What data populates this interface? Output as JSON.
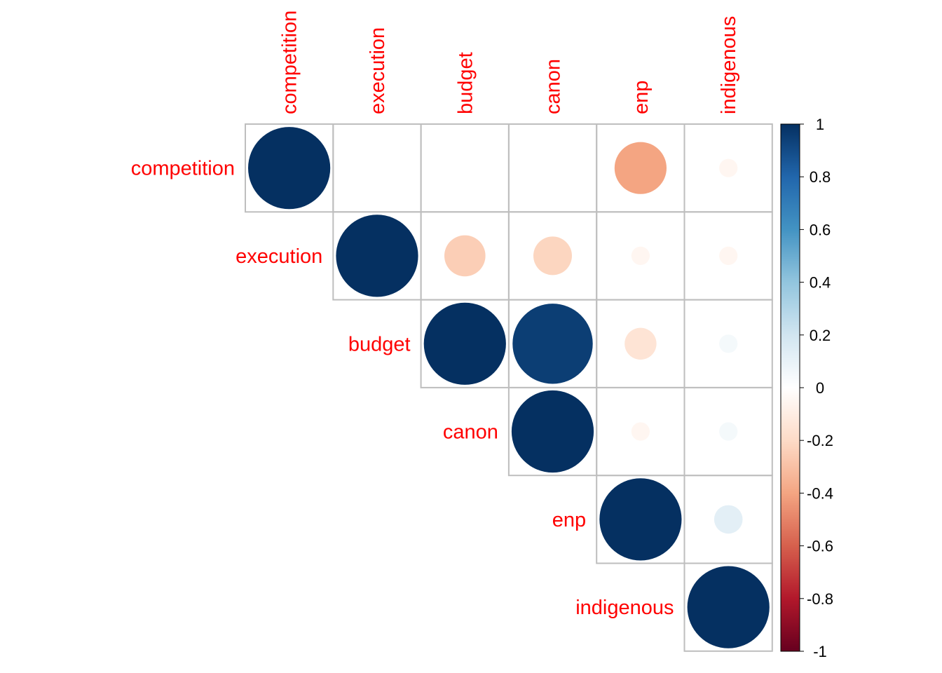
{
  "chart_data": {
    "type": "heatmap",
    "method": "circle",
    "layout": "upper-triangle",
    "variables": [
      "competition",
      "execution",
      "budget",
      "canon",
      "enp",
      "indigenous"
    ],
    "correlations": [
      [
        1.0,
        0.0,
        0.0,
        0.0,
        -0.4,
        -0.05
      ],
      [
        0.0,
        1.0,
        -0.25,
        -0.22,
        -0.05,
        -0.05
      ],
      [
        0.0,
        -0.25,
        1.0,
        0.95,
        -0.15,
        0.05
      ],
      [
        0.0,
        -0.22,
        0.95,
        1.0,
        -0.05,
        0.05
      ],
      [
        -0.4,
        -0.05,
        -0.15,
        -0.05,
        1.0,
        0.12
      ],
      [
        -0.05,
        -0.05,
        0.05,
        0.05,
        0.12,
        1.0
      ]
    ],
    "color_scale": {
      "range": [
        -1,
        1
      ],
      "ticks": [
        "1",
        "0.8",
        "0.6",
        "0.4",
        "0.2",
        "0",
        "-0.2",
        "-0.4",
        "-0.6",
        "-0.8",
        "-1"
      ],
      "stops": [
        {
          "value": -1.0,
          "color": "#67001f"
        },
        {
          "value": -0.8,
          "color": "#b2182b"
        },
        {
          "value": -0.6,
          "color": "#d6604d"
        },
        {
          "value": -0.4,
          "color": "#f4a582"
        },
        {
          "value": -0.2,
          "color": "#fddbc7"
        },
        {
          "value": 0.0,
          "color": "#ffffff"
        },
        {
          "value": 0.2,
          "color": "#d1e5f0"
        },
        {
          "value": 0.4,
          "color": "#92c5de"
        },
        {
          "value": 0.6,
          "color": "#4393c3"
        },
        {
          "value": 0.8,
          "color": "#2166ac"
        },
        {
          "value": 1.0,
          "color": "#053061"
        }
      ]
    },
    "label_color": "#ff0000",
    "grid_color": "#bebebe"
  }
}
